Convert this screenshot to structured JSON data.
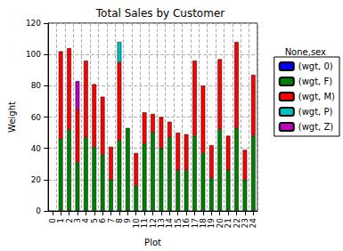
{
  "chart_data": {
    "type": "bar",
    "title": "Total Sales by Customer",
    "x_label": "Plot",
    "y_label": "Weight",
    "legend_title": "None,sex",
    "categories": [
      "0",
      "1",
      "2",
      "3",
      "4",
      "5",
      "6",
      "7",
      "8",
      "9",
      "10",
      "11",
      "12",
      "13",
      "14",
      "15",
      "16",
      "17",
      "18",
      "19",
      "20",
      "21",
      "22",
      "23",
      "24"
    ],
    "series": [
      {
        "name": "(wgt, 0)",
        "color": "#0000ff",
        "values": [
          null,
          null,
          null,
          null,
          null,
          null,
          null,
          null,
          null,
          null,
          null,
          null,
          null,
          null,
          null,
          null,
          null,
          null,
          null,
          null,
          null,
          null,
          null,
          null,
          null
        ]
      },
      {
        "name": "(wgt, F)",
        "color": "#008000",
        "values": [
          null,
          46,
          52,
          31,
          47,
          41,
          36,
          20,
          45,
          53,
          16,
          43,
          50,
          40,
          47,
          26,
          26,
          48,
          37,
          21,
          52,
          26,
          53,
          20,
          48
        ]
      },
      {
        "name": "(wgt, M)",
        "color": "#ff0000",
        "values": [
          null,
          56,
          52,
          34,
          49,
          40,
          37,
          21,
          50,
          null,
          21,
          20,
          12,
          20,
          10,
          24,
          23,
          48,
          43,
          21,
          45,
          22,
          55,
          19,
          39
        ]
      },
      {
        "name": "(wgt, P)",
        "color": "#00bfbf",
        "values": [
          null,
          null,
          null,
          null,
          null,
          null,
          null,
          null,
          13,
          null,
          null,
          null,
          null,
          null,
          null,
          null,
          null,
          null,
          null,
          null,
          null,
          null,
          null,
          null,
          null
        ]
      },
      {
        "name": "(wgt, Z)",
        "color": "#bf00bf",
        "values": [
          null,
          null,
          null,
          18,
          null,
          null,
          null,
          null,
          null,
          null,
          null,
          null,
          null,
          null,
          null,
          null,
          null,
          null,
          null,
          null,
          null,
          null,
          null,
          null,
          null
        ]
      }
    ],
    "ylim": [
      0,
      120
    ],
    "yticks": [
      0,
      20,
      40,
      60,
      80,
      100,
      120
    ],
    "stacked": true,
    "grid": true,
    "legend": "right"
  }
}
